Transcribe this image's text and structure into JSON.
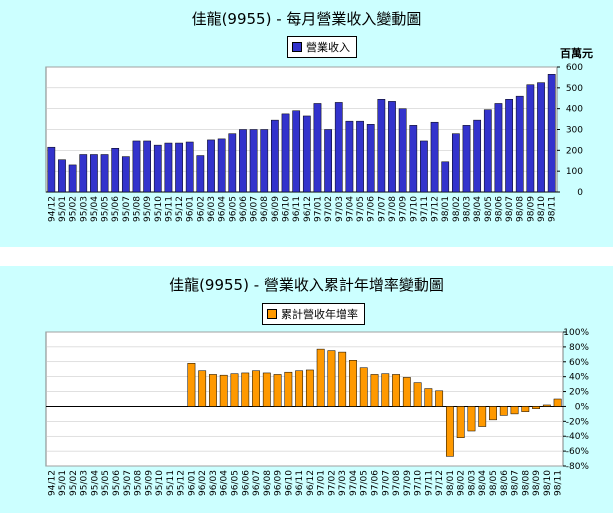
{
  "colors": {
    "bar1": "#3333cc",
    "bar2": "#ff9900",
    "background": "#ccffff"
  },
  "chart_data": [
    {
      "type": "bar",
      "title": "佳龍(9955) - 每月營業收入變動圖",
      "legend": "營業收入",
      "unit_label": "百萬元",
      "ylim": [
        0,
        600
      ],
      "yticks": [
        "0",
        "100",
        "200",
        "300",
        "400",
        "500",
        "600"
      ],
      "categories": [
        "94/12",
        "95/01",
        "95/02",
        "95/03",
        "95/04",
        "95/05",
        "95/06",
        "95/07",
        "95/08",
        "95/09",
        "95/10",
        "95/11",
        "95/12",
        "96/01",
        "96/02",
        "96/03",
        "96/04",
        "96/05",
        "96/06",
        "96/07",
        "96/08",
        "96/09",
        "96/10",
        "96/11",
        "96/12",
        "97/01",
        "97/02",
        "97/03",
        "97/04",
        "97/05",
        "97/06",
        "97/07",
        "97/08",
        "97/09",
        "97/10",
        "97/11",
        "97/12",
        "98/01",
        "98/02",
        "98/03",
        "98/04",
        "98/05",
        "98/06",
        "98/07",
        "98/08",
        "98/09",
        "98/10",
        "98/11"
      ],
      "values": [
        215,
        155,
        130,
        180,
        180,
        180,
        210,
        170,
        245,
        245,
        225,
        235,
        235,
        240,
        175,
        250,
        255,
        280,
        300,
        300,
        300,
        345,
        375,
        390,
        365,
        425,
        300,
        430,
        340,
        340,
        325,
        445,
        435,
        400,
        320,
        245,
        335,
        145,
        280,
        320,
        345,
        395,
        425,
        445,
        460,
        515,
        525,
        565
      ]
    },
    {
      "type": "bar",
      "title": "佳龍(9955) -  營業收入累計年增率變動圖",
      "legend": "累計營收年增率",
      "ylim": [
        -80,
        100
      ],
      "yticks": [
        "-80%",
        "-60%",
        "-40%",
        "-20%",
        "0%",
        "20%",
        "40%",
        "60%",
        "80%",
        "100%"
      ],
      "categories": [
        "94/12",
        "95/01",
        "95/02",
        "95/03",
        "95/04",
        "95/05",
        "95/06",
        "95/07",
        "95/08",
        "95/09",
        "95/10",
        "95/11",
        "95/12",
        "96/01",
        "96/02",
        "96/03",
        "96/04",
        "96/05",
        "96/06",
        "96/07",
        "96/08",
        "96/09",
        "96/10",
        "96/11",
        "96/12",
        "97/01",
        "97/02",
        "97/03",
        "97/04",
        "97/05",
        "97/06",
        "97/07",
        "97/08",
        "97/09",
        "97/10",
        "97/11",
        "97/12",
        "98/01",
        "98/02",
        "98/03",
        "98/04",
        "98/05",
        "98/06",
        "98/07",
        "98/08",
        "98/09",
        "98/10",
        "98/11"
      ],
      "values": [
        0,
        0,
        0,
        0,
        0,
        0,
        0,
        0,
        0,
        0,
        0,
        0,
        0,
        58,
        48,
        43,
        42,
        44,
        45,
        48,
        45,
        43,
        46,
        48,
        49,
        77,
        75,
        73,
        62,
        52,
        43,
        44,
        43,
        39,
        32,
        24,
        21,
        -67,
        -42,
        -33,
        -27,
        -18,
        -12,
        -10,
        -7,
        -3,
        2,
        10
      ]
    }
  ]
}
